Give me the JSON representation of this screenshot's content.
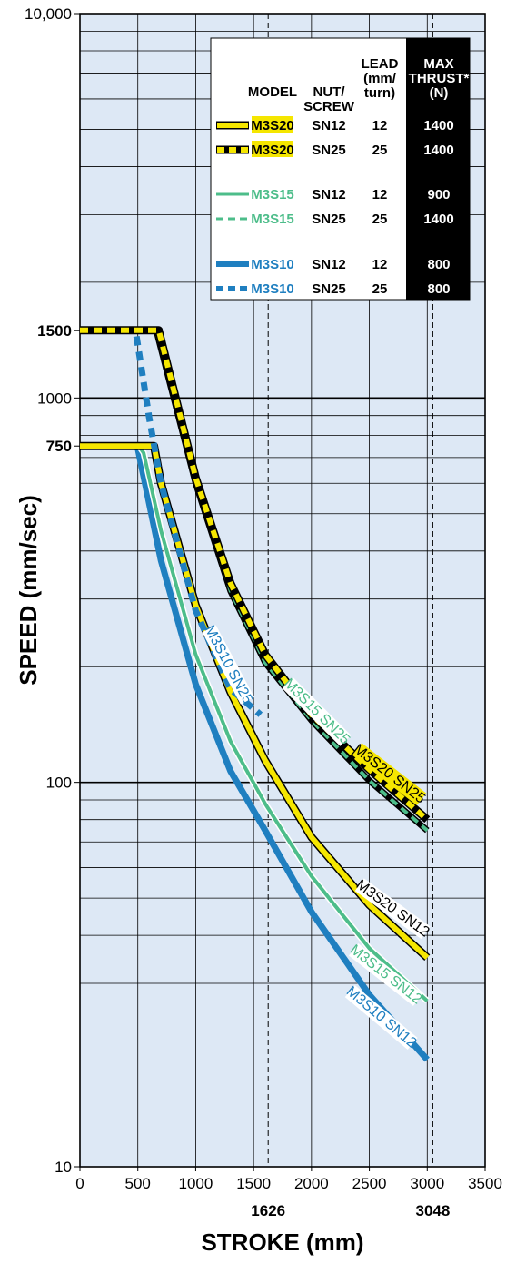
{
  "chart_data": {
    "type": "line",
    "xlabel": "STROKE (mm)",
    "ylabel": "SPEED (mm/sec)",
    "xlim": [
      0,
      3500
    ],
    "ylim": [
      10,
      10000
    ],
    "yscale": "log",
    "grid": true,
    "x_ticks": [
      "0",
      "500",
      "1000",
      "1500",
      "2000",
      "2500",
      "3000",
      "3500"
    ],
    "x_marks": [
      {
        "value": 1626,
        "label": "1626"
      },
      {
        "value": 3048,
        "label": "3048"
      }
    ],
    "y_ticks": [
      {
        "value": 10,
        "label": "10",
        "bold": false
      },
      {
        "value": 100,
        "label": "100",
        "bold": false
      },
      {
        "value": 750,
        "label": "750",
        "bold": true
      },
      {
        "value": 1000,
        "label": "1000",
        "bold": false
      },
      {
        "value": 1500,
        "label": "1500",
        "bold": true
      },
      {
        "value": 10000,
        "label": "10,000",
        "bold": false
      }
    ],
    "colors": {
      "M3S20": "#f5e600",
      "M3S15": "#4dbd8a",
      "M3S10": "#1f7fc0",
      "background": "#dde8f5"
    },
    "legend": {
      "position": "top-right",
      "headers": {
        "model": "MODEL",
        "nut": [
          "NUT/",
          "SCREW"
        ],
        "lead": [
          "LEAD",
          "(mm/",
          "turn)"
        ],
        "thrust": [
          "MAX",
          "THRUST*",
          "(N)"
        ]
      },
      "rows": [
        {
          "model": "M3S20",
          "nut": "SN12",
          "lead": "12",
          "thrust": "1400",
          "dash": false
        },
        {
          "model": "M3S20",
          "nut": "SN25",
          "lead": "25",
          "thrust": "1400",
          "dash": true
        },
        {
          "model": "M3S15",
          "nut": "SN12",
          "lead": "12",
          "thrust": "900",
          "dash": false
        },
        {
          "model": "M3S15",
          "nut": "SN25",
          "lead": "25",
          "thrust": "1400",
          "dash": true
        },
        {
          "model": "M3S10",
          "nut": "SN12",
          "lead": "12",
          "thrust": "800",
          "dash": false
        },
        {
          "model": "M3S10",
          "nut": "SN25",
          "lead": "25",
          "thrust": "800",
          "dash": true
        }
      ]
    },
    "series": [
      {
        "name": "M3S10 SN12",
        "model": "M3S10",
        "dash": false,
        "label": "M3S10 SN12",
        "x": [
          0,
          470,
          500,
          700,
          1000,
          1300,
          1600,
          2000,
          2500,
          3000
        ],
        "y": [
          750,
          750,
          740,
          378,
          180,
          107,
          75,
          46,
          28,
          19
        ]
      },
      {
        "name": "M3S15 SN12",
        "model": "M3S15",
        "dash": false,
        "label": "M3S15 SN12",
        "x": [
          0,
          510,
          550,
          700,
          1000,
          1300,
          1600,
          2000,
          2500,
          3000
        ],
        "y": [
          750,
          750,
          720,
          452,
          215,
          128,
          88,
          57,
          37,
          27
        ]
      },
      {
        "name": "M3S20 SN12",
        "model": "M3S20",
        "dash": false,
        "label": "M3S20 SN12",
        "x": [
          0,
          640,
          700,
          1000,
          1300,
          1600,
          2000,
          2500,
          3000
        ],
        "y": [
          750,
          750,
          600,
          289,
          172,
          114,
          72,
          48,
          35
        ]
      },
      {
        "name": "M3S10 SN25",
        "model": "M3S10",
        "dash": true,
        "label": "M3S10 SN25",
        "x": [
          0,
          480,
          600,
          700,
          1000,
          1300,
          1560
        ],
        "y": [
          1500,
          1500,
          880,
          600,
          280,
          175,
          150
        ]
      },
      {
        "name": "M3S15 SN25",
        "model": "M3S15",
        "dash": true,
        "label": "M3S15 SN25",
        "x": [
          0,
          660,
          1000,
          1300,
          1600,
          2000,
          2500,
          3000
        ],
        "y": [
          1500,
          1500,
          600,
          315,
          205,
          145,
          101,
          75
        ]
      },
      {
        "name": "M3S20 SN25",
        "model": "M3S20",
        "dash": true,
        "label": "M3S20 SN25",
        "x": [
          0,
          680,
          1000,
          1300,
          1600,
          2000,
          2500,
          3000
        ],
        "y": [
          1500,
          1500,
          620,
          330,
          215,
          150,
          108,
          80
        ]
      }
    ]
  }
}
